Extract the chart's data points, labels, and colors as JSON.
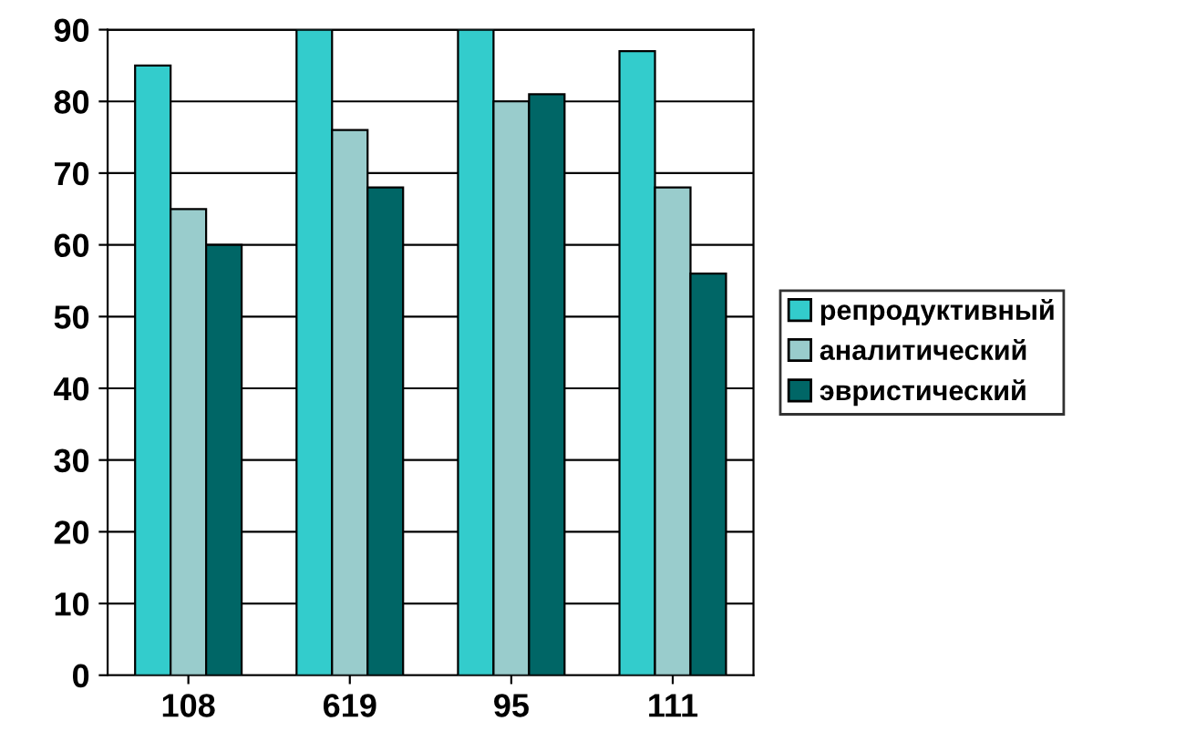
{
  "chart_data": {
    "type": "bar",
    "categories": [
      "108",
      "619",
      "95",
      "111"
    ],
    "series": [
      {
        "name": "репродуктивный",
        "color": "#33cccc",
        "values": [
          85,
          90,
          90,
          87
        ]
      },
      {
        "name": "аналитический",
        "color": "#99cccc",
        "values": [
          65,
          76,
          80,
          68
        ]
      },
      {
        "name": "эвристический",
        "color": "#006666",
        "values": [
          60,
          68,
          81,
          56
        ]
      }
    ],
    "ylim": [
      0,
      90
    ],
    "yticks": [
      0,
      10,
      20,
      30,
      40,
      50,
      60,
      70,
      80,
      90
    ],
    "grid": "y",
    "legend": "right"
  }
}
